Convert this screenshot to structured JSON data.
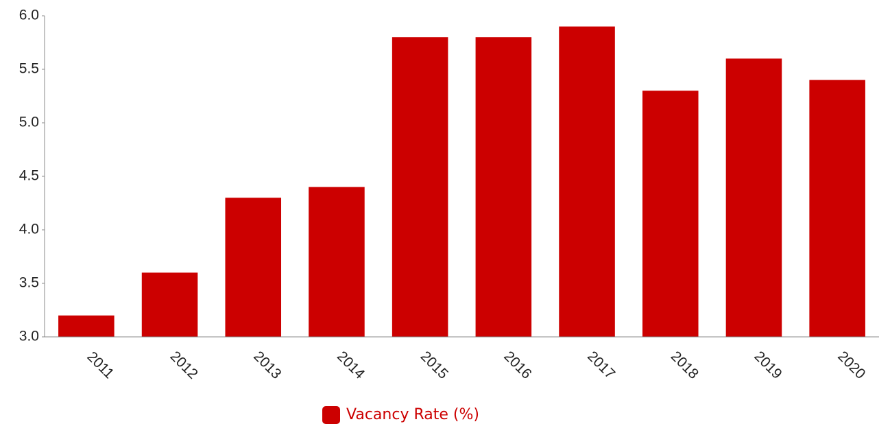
{
  "chart_data": {
    "type": "bar",
    "categories": [
      "2011",
      "2012",
      "2013",
      "2014",
      "2015",
      "2016",
      "2017",
      "2018",
      "2019",
      "2020"
    ],
    "series": [
      {
        "name": "Vacancy Rate (%)",
        "color": "#cc0000",
        "values": [
          3.2,
          3.6,
          4.3,
          4.4,
          5.8,
          5.8,
          5.9,
          5.3,
          5.6,
          5.4
        ]
      }
    ],
    "ylim": [
      3,
      6
    ],
    "yticks": [
      {
        "value": 3,
        "label": "3.0"
      },
      3.5,
      {
        "value": 4,
        "label": "4.0"
      },
      4.5,
      {
        "value": 5,
        "label": "5.0"
      },
      5.5,
      {
        "value": 6,
        "label": "6.0"
      }
    ],
    "grid": false,
    "legend": "bottom"
  }
}
